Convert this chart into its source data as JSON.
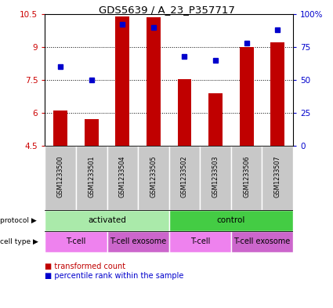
{
  "title": "GDS5639 / A_23_P357717",
  "samples": [
    "GSM1233500",
    "GSM1233501",
    "GSM1233504",
    "GSM1233505",
    "GSM1233502",
    "GSM1233503",
    "GSM1233506",
    "GSM1233507"
  ],
  "transformed_counts": [
    6.1,
    5.7,
    10.4,
    10.35,
    7.55,
    6.9,
    9.0,
    9.2
  ],
  "percentile_ranks": [
    60,
    50,
    92,
    90,
    68,
    65,
    78,
    88
  ],
  "ylim_left": [
    4.5,
    10.5
  ],
  "ylim_right": [
    0,
    100
  ],
  "yticks_left": [
    4.5,
    6.0,
    7.5,
    9.0,
    10.5
  ],
  "yticks_right": [
    0,
    25,
    50,
    75,
    100
  ],
  "ytick_labels_left": [
    "4.5",
    "6",
    "7.5",
    "9",
    "10.5"
  ],
  "ytick_labels_right": [
    "0",
    "25",
    "50",
    "75",
    "100%"
  ],
  "bar_color": "#C00000",
  "dot_color": "#0000CC",
  "bar_bottom": 4.5,
  "protocol_groups": [
    {
      "label": "activated",
      "start": 0,
      "end": 4,
      "color": "#AAEAAA"
    },
    {
      "label": "control",
      "start": 4,
      "end": 8,
      "color": "#44CC44"
    }
  ],
  "cell_type_groups": [
    {
      "label": "T-cell",
      "start": 0,
      "end": 2,
      "color": "#EE82EE"
    },
    {
      "label": "T-cell exosome",
      "start": 2,
      "end": 4,
      "color": "#CC66CC"
    },
    {
      "label": "T-cell",
      "start": 4,
      "end": 6,
      "color": "#EE82EE"
    },
    {
      "label": "T-cell exosome",
      "start": 6,
      "end": 8,
      "color": "#CC66CC"
    }
  ],
  "legend_items": [
    {
      "label": "transformed count",
      "color": "#C00000"
    },
    {
      "label": "percentile rank within the sample",
      "color": "#0000CC"
    }
  ],
  "protocol_label": "protocol",
  "cell_type_label": "cell type",
  "bg_color": "#FFFFFF",
  "tick_color_left": "#CC0000",
  "tick_color_right": "#0000CC",
  "sample_bg": "#C8C8C8"
}
